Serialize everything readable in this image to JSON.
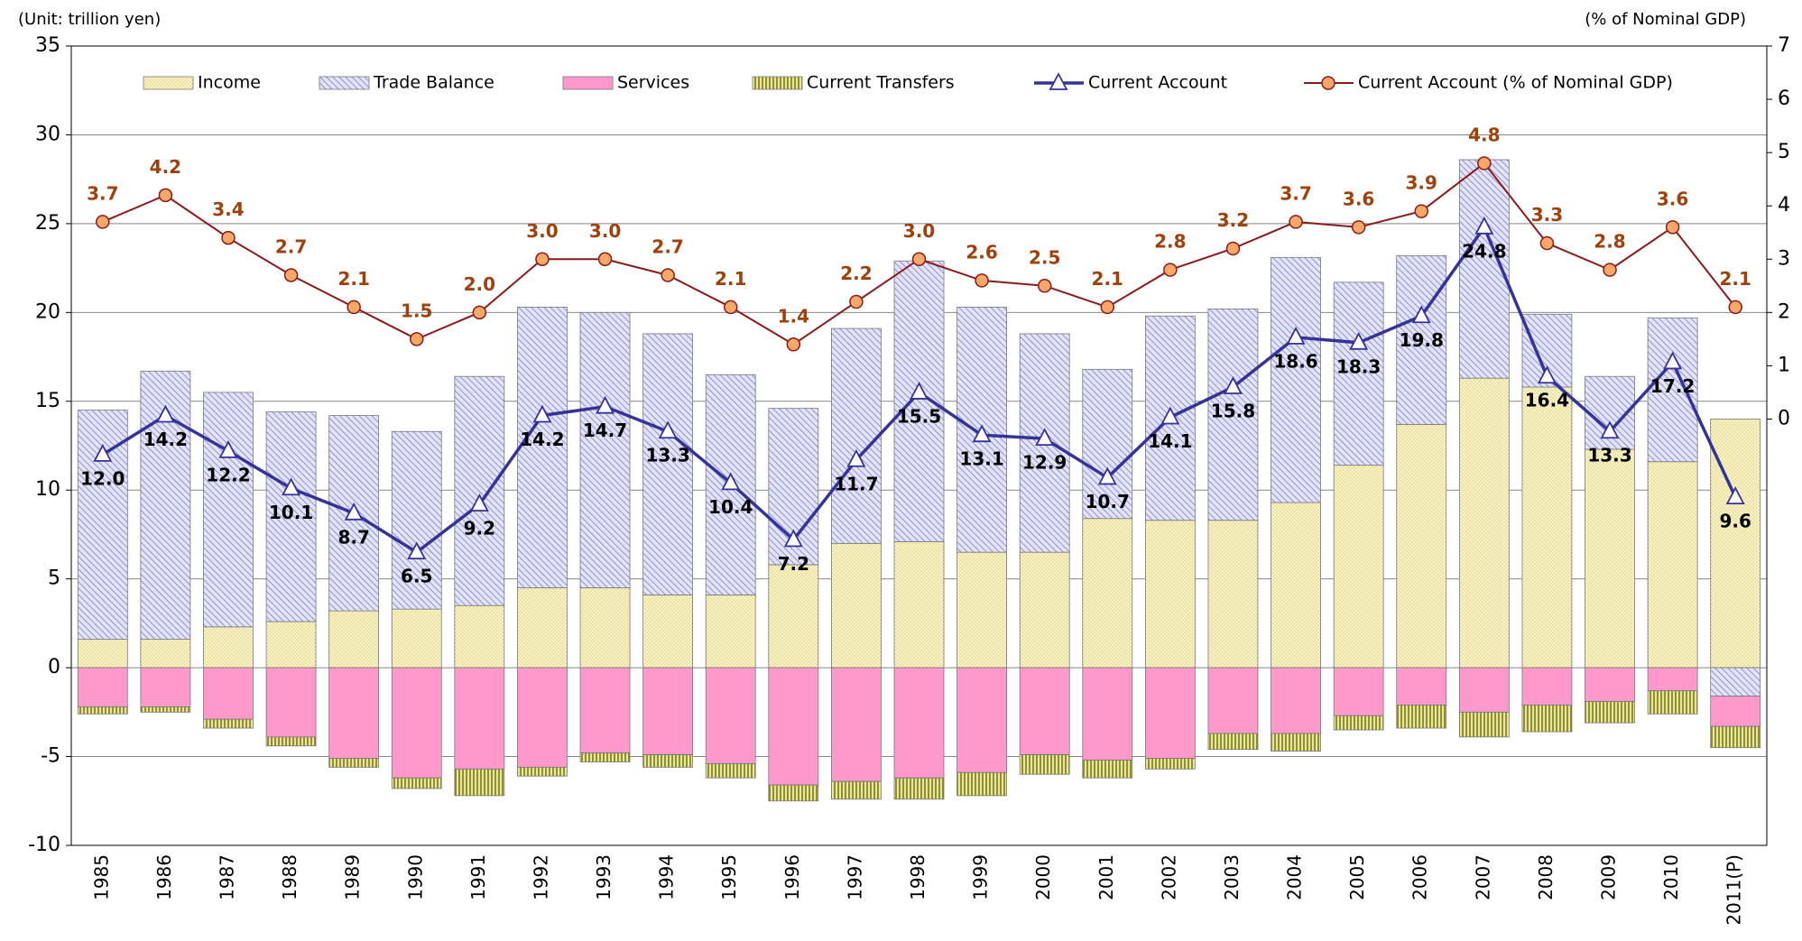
{
  "chart_data": {
    "type": "bar",
    "stacked": true,
    "unit_left": "(Unit: trillion yen)",
    "unit_right": "(% of Nominal GDP)",
    "categories": [
      "1985",
      "1986",
      "1987",
      "1988",
      "1989",
      "1990",
      "1991",
      "1992",
      "1993",
      "1994",
      "1995",
      "1996",
      "1997",
      "1998",
      "1999",
      "2000",
      "2001",
      "2002",
      "2003",
      "2004",
      "2005",
      "2006",
      "2007",
      "2008",
      "2009",
      "2010",
      "2011(P)"
    ],
    "ylim": [
      -10,
      35
    ],
    "yticks": [
      -10,
      -5,
      0,
      5,
      10,
      15,
      20,
      25,
      30,
      35
    ],
    "y2lim": [
      -8,
      7
    ],
    "y2ticks": [
      0,
      1,
      2,
      3,
      4,
      5,
      6,
      7
    ],
    "grid": true,
    "series": [
      {
        "name": "Income",
        "type": "bar",
        "color": "#f7f0b8",
        "values": [
          1.6,
          1.6,
          2.3,
          2.6,
          3.2,
          3.3,
          3.5,
          4.5,
          4.5,
          4.1,
          4.1,
          5.8,
          7.0,
          7.1,
          6.5,
          6.5,
          8.4,
          8.3,
          8.3,
          9.3,
          11.4,
          13.7,
          16.3,
          15.8,
          12.3,
          11.6,
          14.0
        ]
      },
      {
        "name": "Trade Balance",
        "type": "bar",
        "color": "#8c8ce0",
        "values": [
          12.9,
          15.1,
          13.2,
          11.8,
          11.0,
          10.0,
          12.9,
          15.8,
          15.5,
          14.7,
          12.4,
          8.8,
          12.1,
          15.8,
          13.8,
          12.3,
          8.4,
          11.5,
          11.9,
          13.8,
          10.3,
          9.5,
          12.3,
          4.1,
          4.1,
          8.1,
          -1.6
        ]
      },
      {
        "name": "Services",
        "type": "bar",
        "color": "#ff99cc",
        "values": [
          -2.2,
          -2.2,
          -2.9,
          -3.9,
          -5.1,
          -6.2,
          -5.7,
          -5.6,
          -4.8,
          -4.9,
          -5.4,
          -6.6,
          -6.4,
          -6.2,
          -5.9,
          -4.9,
          -5.2,
          -5.1,
          -3.7,
          -3.7,
          -2.7,
          -2.1,
          -2.5,
          -2.1,
          -1.9,
          -1.3,
          -1.7
        ]
      },
      {
        "name": "Current Transfers",
        "type": "bar",
        "color": "#8c8c1a",
        "values": [
          -0.4,
          -0.3,
          -0.5,
          -0.5,
          -0.5,
          -0.6,
          -1.5,
          -0.5,
          -0.5,
          -0.7,
          -0.8,
          -0.9,
          -1.0,
          -1.2,
          -1.3,
          -1.1,
          -1.0,
          -0.6,
          -0.9,
          -1.0,
          -0.8,
          -1.3,
          -1.4,
          -1.5,
          -1.2,
          -1.3,
          -1.2
        ]
      },
      {
        "name": "Current Account",
        "type": "line",
        "color": "#333399",
        "values": [
          12.0,
          14.2,
          12.2,
          10.1,
          8.7,
          6.5,
          9.2,
          14.2,
          14.7,
          13.3,
          10.4,
          7.2,
          11.7,
          15.5,
          13.1,
          12.9,
          10.7,
          14.1,
          15.8,
          18.6,
          18.3,
          19.8,
          24.8,
          16.4,
          13.3,
          17.2,
          9.6
        ],
        "value_labels": [
          "12.0",
          "14.2",
          "12.2",
          "10.1",
          "8.7",
          "6.5",
          "9.2",
          "14.2",
          "14.7",
          "13.3",
          "10.4",
          "7.2",
          "11.7",
          "15.5",
          "13.1",
          "12.9",
          "10.7",
          "14.1",
          "15.8",
          "18.6",
          "18.3",
          "19.8",
          "24.8",
          "16.4",
          "13.3",
          "17.2",
          "9.6"
        ]
      },
      {
        "name": "Current Account (% of Nominal GDP)",
        "type": "line",
        "axis": "y2",
        "color": "#8b1a1a",
        "values": [
          3.7,
          4.2,
          3.4,
          2.7,
          2.1,
          1.5,
          2.0,
          3.0,
          3.0,
          2.7,
          2.1,
          1.4,
          2.2,
          3.0,
          2.6,
          2.5,
          2.1,
          2.8,
          3.2,
          3.7,
          3.6,
          3.9,
          4.8,
          3.3,
          2.8,
          3.6,
          2.1
        ],
        "value_labels": [
          "3.7",
          "4.2",
          "3.4",
          "2.7",
          "2.1",
          "1.5",
          "2.0",
          "3.0",
          "3.0",
          "2.7",
          "2.1",
          "1.4",
          "2.2",
          "3.0",
          "2.6",
          "2.5",
          "2.1",
          "2.8",
          "3.2",
          "3.7",
          "3.6",
          "3.9",
          "4.8",
          "3.3",
          "2.8",
          "3.6",
          "2.1"
        ]
      }
    ]
  }
}
